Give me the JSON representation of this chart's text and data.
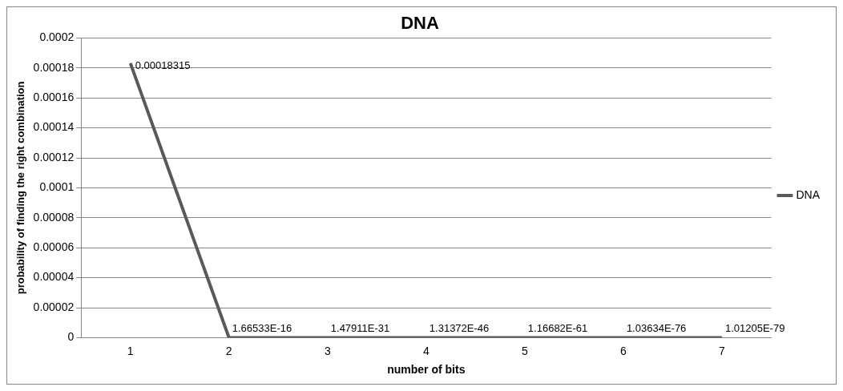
{
  "chart_data": {
    "type": "line",
    "title": "DNA",
    "xlabel": "number of bits",
    "ylabel": "probability of finding the right combination",
    "categories": [
      "1",
      "2",
      "3",
      "4",
      "5",
      "6",
      "7"
    ],
    "series": [
      {
        "name": "DNA",
        "color": "#595959",
        "values": [
          0.00018315,
          1.66533e-16,
          1.47911e-31,
          1.31372e-46,
          1.16682e-61,
          1.03634e-76,
          1.01205e-79
        ],
        "value_labels": [
          "0.00018315",
          "1.66533E-16",
          "1.47911E-31",
          "1.31372E-46",
          "1.16682E-61",
          "1.03634E-76",
          "1.01205E-79"
        ]
      }
    ],
    "ylim": [
      0,
      0.0002
    ],
    "yticks": [
      0,
      {
        "value": 2e-05,
        "label": "0.00002"
      },
      {
        "value": 4e-05,
        "label": "0.00004"
      },
      {
        "value": 6e-05,
        "label": "0.00006"
      },
      {
        "value": 8e-05,
        "label": "0.00008"
      },
      0.0001,
      0.00012,
      0.00014,
      0.00016,
      0.00018,
      0.0002
    ],
    "grid": "y",
    "legend": "right",
    "marker": "none",
    "line_style": "solid"
  }
}
